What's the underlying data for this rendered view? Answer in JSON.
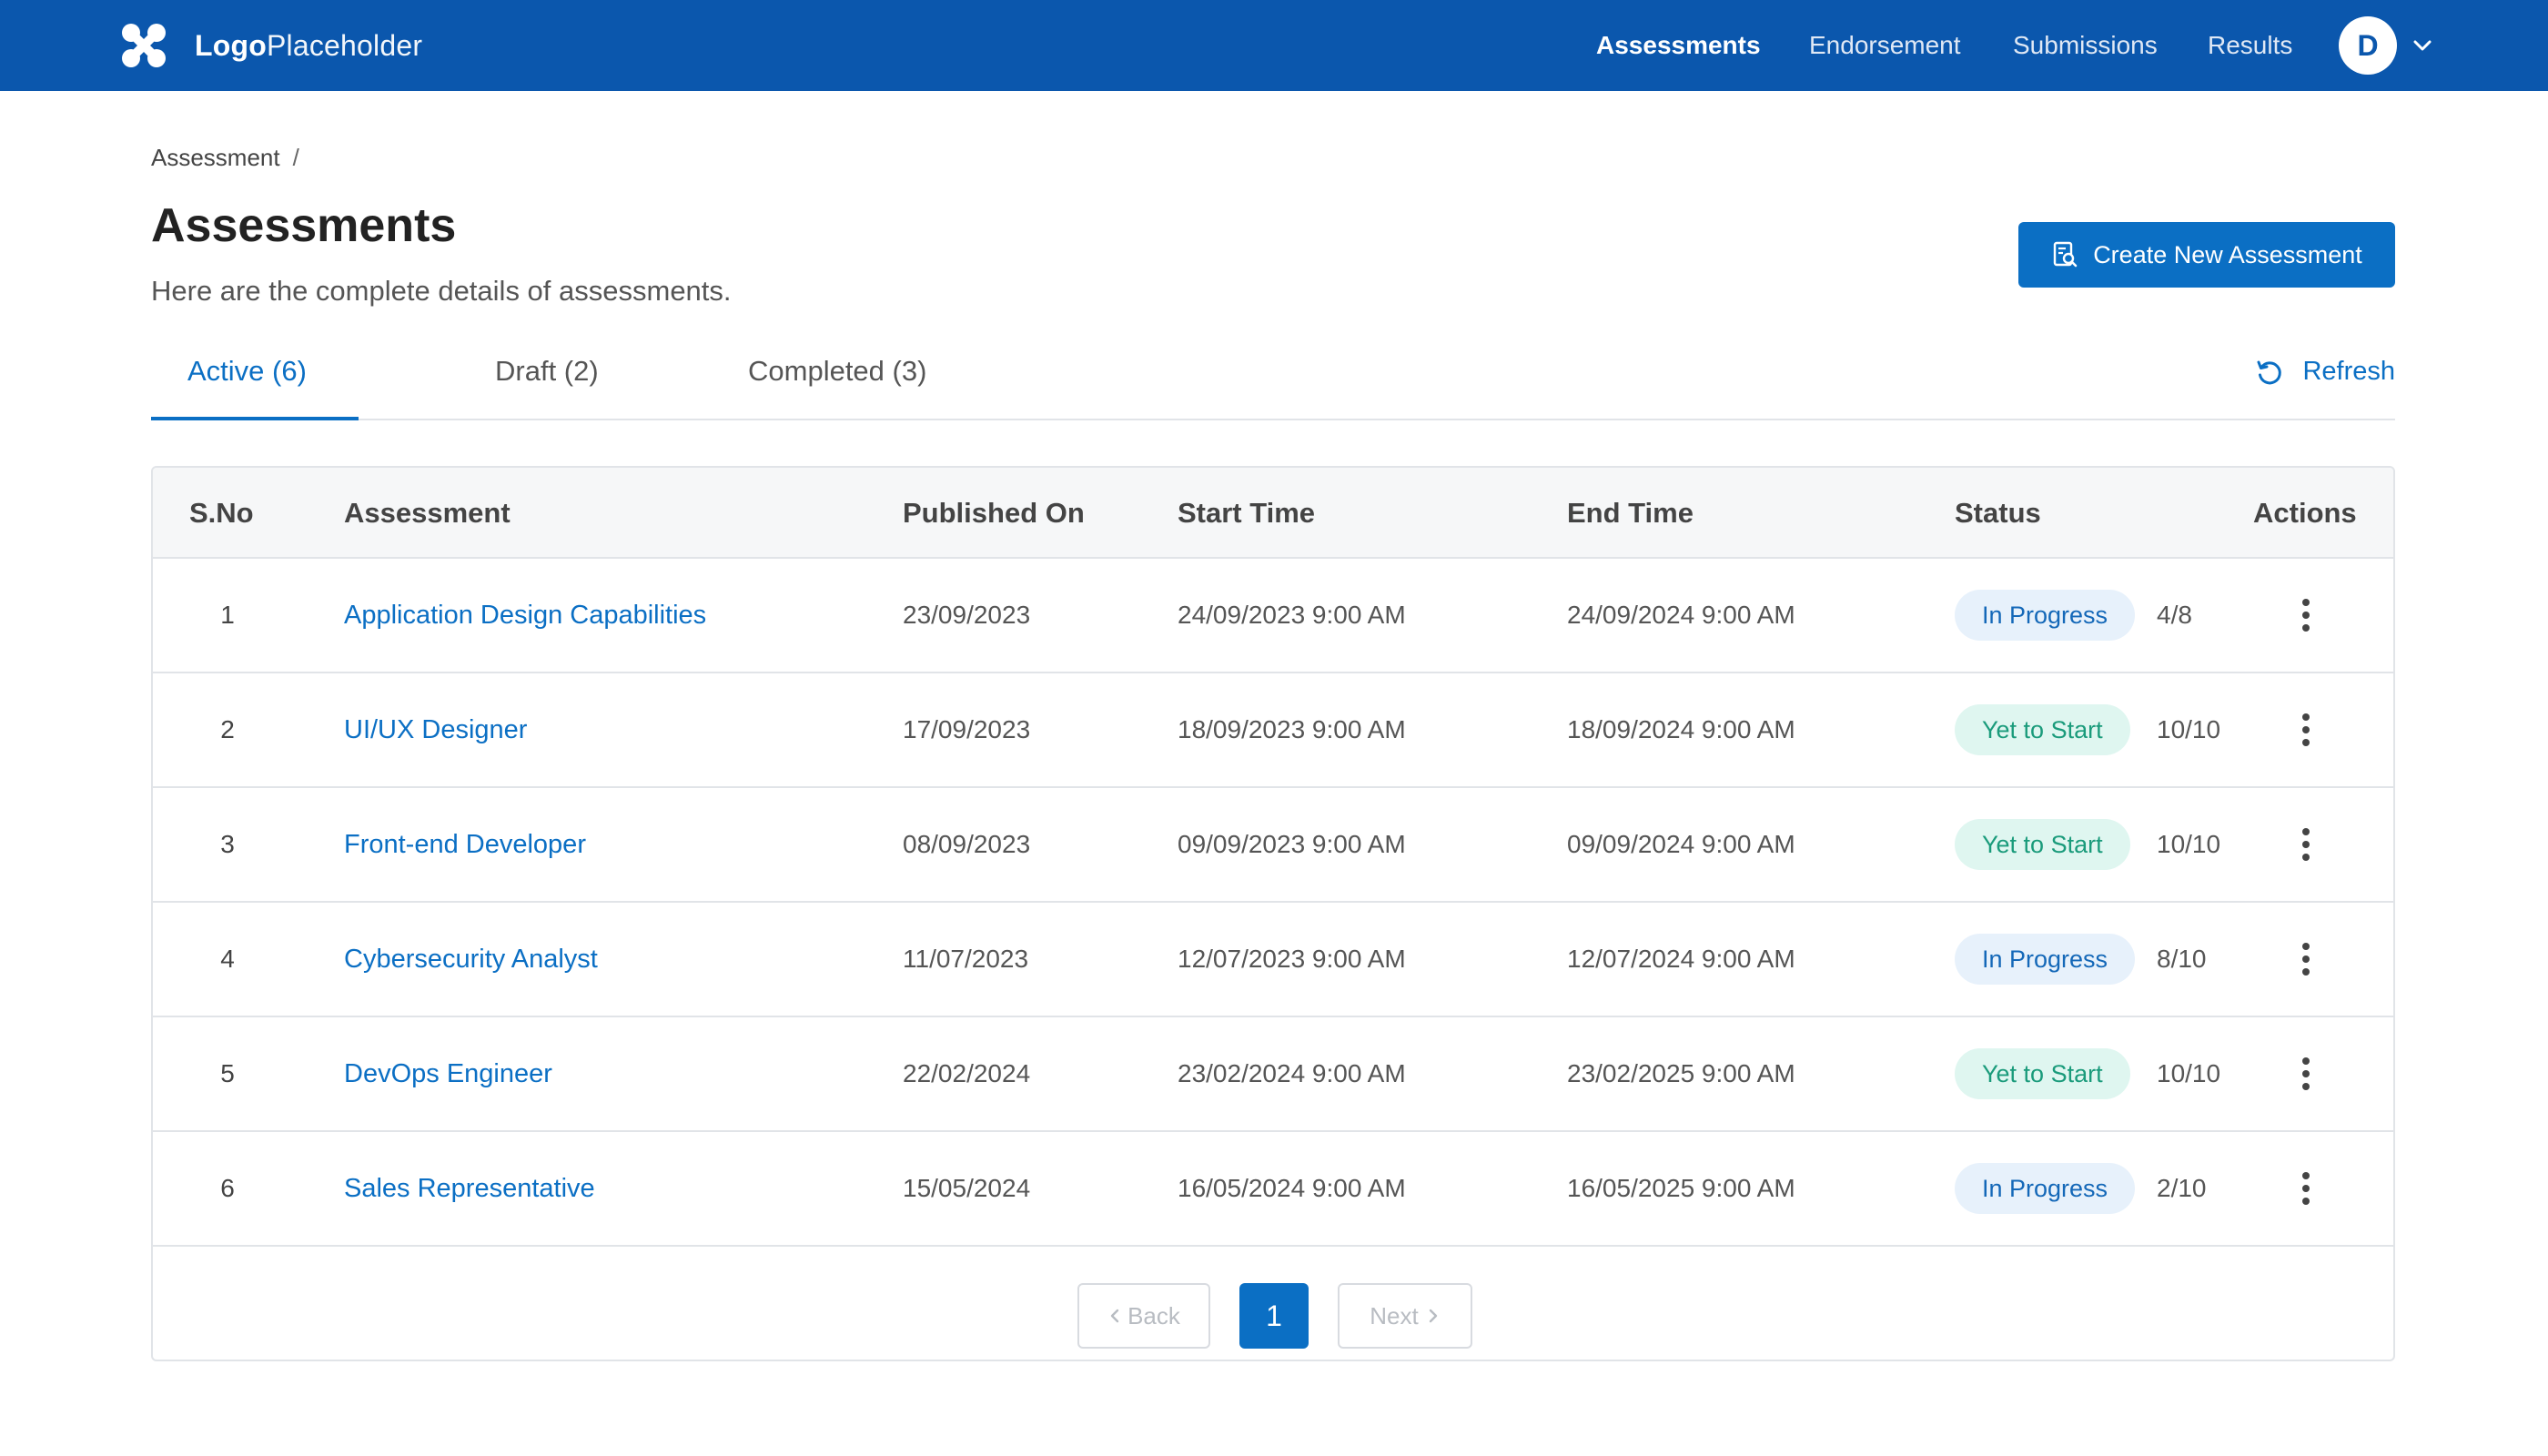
{
  "header": {
    "logo_bold": "Logo",
    "logo_light": "Placeholder",
    "nav": [
      {
        "label": "Assessments",
        "active": true
      },
      {
        "label": "Endorsement",
        "active": false
      },
      {
        "label": "Submissions",
        "active": false
      },
      {
        "label": "Results",
        "active": false
      }
    ],
    "avatar_initial": "D",
    "brand_color": "#0b57ad"
  },
  "breadcrumb": {
    "item": "Assessment",
    "separator": "/"
  },
  "page": {
    "title": "Assessments",
    "subtitle": "Here are the complete details of assessments.",
    "create_button": "Create New Assessment",
    "refresh_label": "Refresh"
  },
  "tabs": [
    {
      "label": "Active (6)",
      "active": true
    },
    {
      "label": "Draft (2)",
      "active": false
    },
    {
      "label": "Completed (3)",
      "active": false
    }
  ],
  "table": {
    "headers": {
      "sno": "S.No",
      "assessment": "Assessment",
      "published": "Published On",
      "start": "Start Time",
      "end": "End Time",
      "status": "Status",
      "actions": "Actions"
    },
    "rows": [
      {
        "sno": "1",
        "name": "Application Design Capabilities",
        "published": "23/09/2023",
        "start": "24/09/2023  9:00 AM",
        "end": "24/09/2024  9:00 AM",
        "status": "In Progress",
        "status_type": "progress",
        "count": "4/8"
      },
      {
        "sno": "2",
        "name": "UI/UX Designer",
        "published": "17/09/2023",
        "start": "18/09/2023  9:00 AM",
        "end": "18/09/2024  9:00 AM",
        "status": "Yet to Start",
        "status_type": "yet",
        "count": "10/10"
      },
      {
        "sno": "3",
        "name": "Front-end Developer",
        "published": "08/09/2023",
        "start": "09/09/2023  9:00 AM",
        "end": "09/09/2024  9:00 AM",
        "status": "Yet to Start",
        "status_type": "yet",
        "count": "10/10"
      },
      {
        "sno": "4",
        "name": "Cybersecurity Analyst",
        "published": "11/07/2023",
        "start": "12/07/2023  9:00 AM",
        "end": "12/07/2024  9:00 AM",
        "status": "In Progress",
        "status_type": "progress",
        "count": "8/10"
      },
      {
        "sno": "5",
        "name": "DevOps Engineer",
        "published": "22/02/2024",
        "start": "23/02/2024  9:00 AM",
        "end": "23/02/2025  9:00 AM",
        "status": "Yet to Start",
        "status_type": "yet",
        "count": "10/10"
      },
      {
        "sno": "6",
        "name": "Sales Representative",
        "published": "15/05/2024",
        "start": "16/05/2024  9:00 AM",
        "end": "16/05/2025  9:00 AM",
        "status": "In Progress",
        "status_type": "progress",
        "count": "2/10"
      }
    ]
  },
  "pagination": {
    "back": "Back",
    "next": "Next",
    "current": "1"
  },
  "icons": {
    "logo": "logo-mark-icon",
    "caret": "chevron-down-icon",
    "create": "document-search-icon",
    "refresh": "refresh-icon",
    "actions": "kebab-menu-icon",
    "back": "chevron-left-icon",
    "next": "chevron-right-icon"
  }
}
